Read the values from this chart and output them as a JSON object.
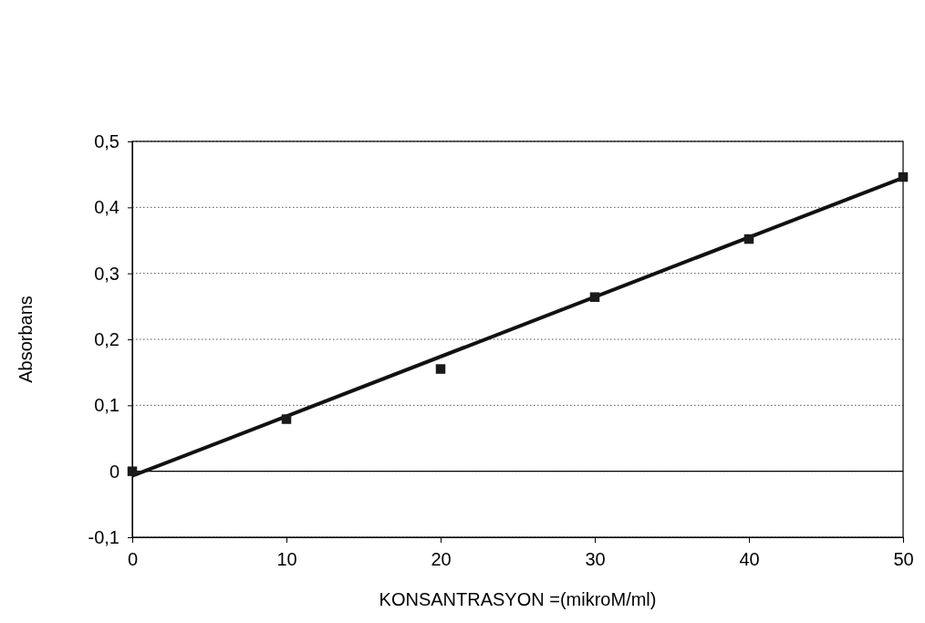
{
  "chart_data": {
    "type": "scatter",
    "xlabel": "KONSANTRASYON =(mikroM/ml)",
    "ylabel": "Absorbans",
    "xlim": [
      0,
      50
    ],
    "xticks": [
      0,
      10,
      20,
      30,
      40,
      50
    ],
    "ylim": [
      -0.1,
      0.5
    ],
    "yticks": [
      {
        "value": -0.1,
        "label": "-0,1"
      },
      0,
      {
        "value": 0.1,
        "label": "0,1"
      },
      {
        "value": 0.2,
        "label": "0,2"
      },
      {
        "value": 0.3,
        "label": "0,3"
      },
      {
        "value": 0.4,
        "label": "0,4"
      },
      {
        "value": 0.5,
        "label": "0,5"
      }
    ],
    "grid": "y",
    "ref_lines": [
      {
        "axis": "y",
        "value": 0,
        "color": "#000000",
        "line_style": "solid"
      }
    ],
    "series": [
      {
        "marker": "square",
        "color": "#1a1a1a",
        "x": [
          0,
          10,
          20,
          30,
          40,
          50
        ],
        "values": [
          0.0,
          0.079,
          0.155,
          0.264,
          0.352,
          0.446
        ]
      },
      {
        "type": "line",
        "color": "#111111",
        "x": [
          0,
          50
        ],
        "values": [
          -0.007,
          0.445
        ],
        "line_style": "solid"
      }
    ]
  }
}
